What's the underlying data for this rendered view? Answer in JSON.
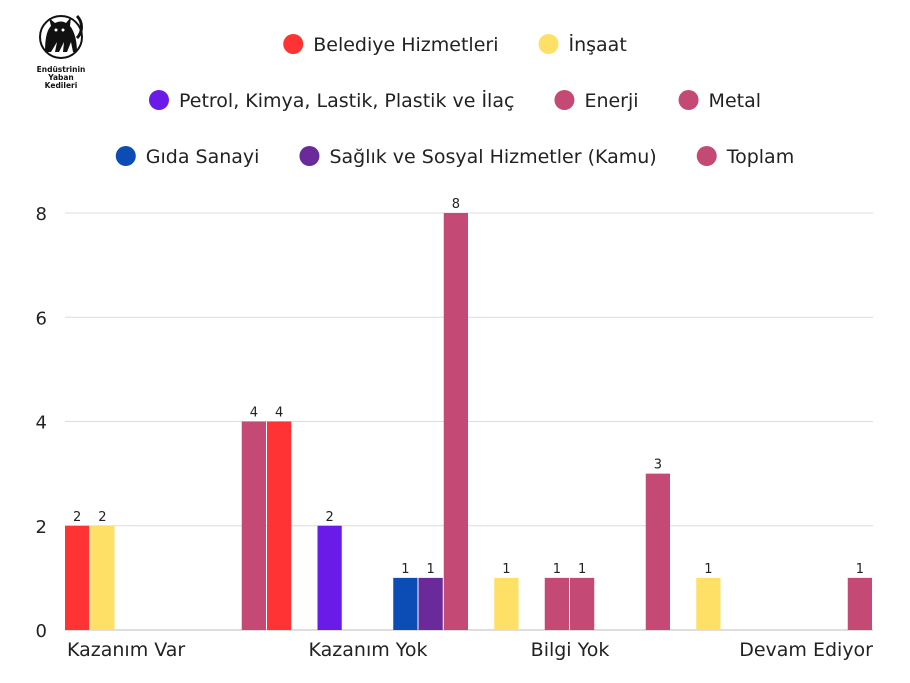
{
  "logo": {
    "lines": [
      "Endüstrinin",
      "Yaban",
      "Kedileri"
    ],
    "icon": "black-cat-icon"
  },
  "chart_data": {
    "type": "bar",
    "categories": [
      "Kazanım Var",
      "Kazanım Yok",
      "Bilgi Yok",
      "Devam Ediyor"
    ],
    "series": [
      {
        "name": "Belediye Hizmetleri",
        "color": "#ff3333",
        "values": [
          2,
          4,
          0,
          0
        ]
      },
      {
        "name": "İnşaat",
        "color": "#ffe066",
        "values": [
          2,
          0,
          1,
          1
        ]
      },
      {
        "name": "Petrol, Kimya, Lastik, Plastik ve İlaç",
        "color": "#6a1be8",
        "values": [
          0,
          2,
          0,
          0
        ]
      },
      {
        "name": "Enerji",
        "color": "#c44a75",
        "values": [
          0,
          0,
          1,
          0
        ]
      },
      {
        "name": "Metal",
        "color": "#c44a75",
        "values": [
          0,
          0,
          1,
          0
        ]
      },
      {
        "name": "Gıda Sanayi",
        "color": "#0b4db5",
        "values": [
          0,
          1,
          0,
          0
        ]
      },
      {
        "name": "Sağlık ve Sosyal Hizmetler (Kamu)",
        "color": "#6a2a9a",
        "values": [
          0,
          1,
          0,
          0
        ]
      },
      {
        "name": "Toplam",
        "color": "#c44a75",
        "values": [
          4,
          8,
          3,
          1
        ]
      }
    ],
    "ylim": [
      0,
      8
    ],
    "yticks": [
      0,
      2,
      4,
      6,
      8
    ],
    "grid": true,
    "legend_position": "top"
  }
}
